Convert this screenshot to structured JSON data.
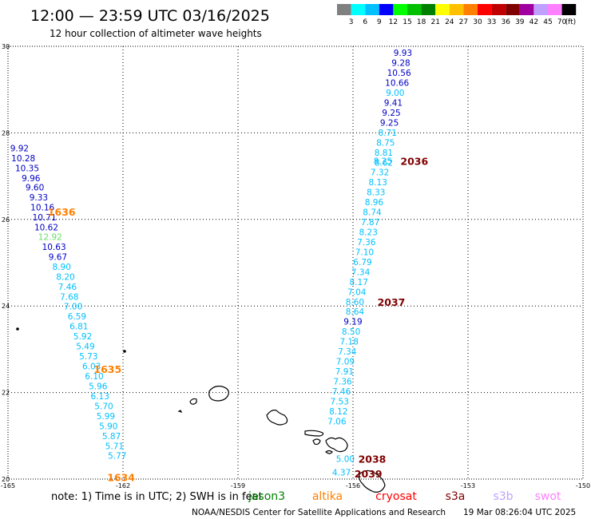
{
  "header": {
    "title": "12:00 — 23:59 UTC 03/16/2025",
    "subtitle": "12 hour collection of altimeter wave heights"
  },
  "legend": {
    "unit": "(ft)",
    "bins": [
      {
        "label": "3",
        "color": "#808080"
      },
      {
        "label": "6",
        "color": "#00ffff"
      },
      {
        "label": "9",
        "color": "#00c0ff"
      },
      {
        "label": "12",
        "color": "#0000ff"
      },
      {
        "label": "15",
        "color": "#00ff00"
      },
      {
        "label": "18",
        "color": "#00c000"
      },
      {
        "label": "21",
        "color": "#008000"
      },
      {
        "label": "24",
        "color": "#ffff00"
      },
      {
        "label": "27",
        "color": "#ffc000"
      },
      {
        "label": "30",
        "color": "#ff8000"
      },
      {
        "label": "33",
        "color": "#ff0000"
      },
      {
        "label": "36",
        "color": "#c00000"
      },
      {
        "label": "39",
        "color": "#800000"
      },
      {
        "label": "42",
        "color": "#a000a0"
      },
      {
        "label": "45",
        "color": "#c0a0ff"
      },
      {
        "label": "70",
        "color": "#ff80ff"
      },
      {
        "label": "",
        "color": "#000000"
      }
    ]
  },
  "axes": {
    "lon_ticks": [
      "-165",
      "-162",
      "-159",
      "-156",
      "-153",
      "-150"
    ],
    "lat_ticks": [
      "30",
      "28",
      "26",
      "24",
      "22",
      "20"
    ]
  },
  "tracks": [
    {
      "time": "1636",
      "time_color": "#ff8000",
      "time_label_lat": 26.18,
      "time_label_lon": -163.6,
      "points": [
        {
          "lat": 27.65,
          "lon": -164.7,
          "value": "9.92",
          "color": "#0000c8"
        },
        {
          "lat": 27.42,
          "lon": -164.6,
          "value": "10.28",
          "color": "#0000c8"
        },
        {
          "lat": 27.19,
          "lon": -164.5,
          "value": "10.35",
          "color": "#0000c8"
        },
        {
          "lat": 26.96,
          "lon": -164.4,
          "value": "9.96",
          "color": "#0000c8"
        },
        {
          "lat": 26.74,
          "lon": -164.3,
          "value": "9.60",
          "color": "#0000c8"
        },
        {
          "lat": 26.51,
          "lon": -164.2,
          "value": "9.33",
          "color": "#0000c8"
        },
        {
          "lat": 26.28,
          "lon": -164.1,
          "value": "10.16",
          "color": "#0000c8"
        },
        {
          "lat": 26.05,
          "lon": -164.05,
          "value": "10.71",
          "color": "#0000c8"
        },
        {
          "lat": 25.82,
          "lon": -164.0,
          "value": "10.62",
          "color": "#0000c8"
        },
        {
          "lat": 25.6,
          "lon": -163.9,
          "value": "12.92",
          "color": "#66dd66"
        },
        {
          "lat": 25.37,
          "lon": -163.8,
          "value": "10.63",
          "color": "#0000c8"
        },
        {
          "lat": 25.14,
          "lon": -163.7,
          "value": "9.67",
          "color": "#0000c8"
        },
        {
          "lat": 24.91,
          "lon": -163.6,
          "value": "8.90",
          "color": "#00c0ff"
        },
        {
          "lat": 24.68,
          "lon": -163.5,
          "value": "8.20",
          "color": "#00c0ff"
        },
        {
          "lat": 24.45,
          "lon": -163.45,
          "value": "7.46",
          "color": "#00c0ff"
        },
        {
          "lat": 24.22,
          "lon": -163.4,
          "value": "7.68",
          "color": "#00c0ff"
        },
        {
          "lat": 23.99,
          "lon": -163.3,
          "value": "7.00",
          "color": "#00c0ff"
        },
        {
          "lat": 23.76,
          "lon": -163.2,
          "value": "6.59",
          "color": "#00c0ff"
        }
      ]
    },
    {
      "time": "1635",
      "time_color": "#ff8000",
      "time_label_lat": 22.55,
      "time_label_lon": -162.4,
      "points": [
        {
          "lat": 23.53,
          "lon": -163.15,
          "value": "6.81",
          "color": "#00c0ff"
        },
        {
          "lat": 23.3,
          "lon": -163.05,
          "value": "5.92",
          "color": "#00c0ff"
        },
        {
          "lat": 23.07,
          "lon": -162.98,
          "value": "5.49",
          "color": "#00c0ff"
        },
        {
          "lat": 22.84,
          "lon": -162.9,
          "value": "5.73",
          "color": "#00c0ff"
        },
        {
          "lat": 22.61,
          "lon": -162.82,
          "value": "6.03",
          "color": "#00c0ff"
        },
        {
          "lat": 22.38,
          "lon": -162.75,
          "value": "6.10",
          "color": "#00c0ff"
        },
        {
          "lat": 22.15,
          "lon": -162.65,
          "value": "5.96",
          "color": "#00c0ff"
        },
        {
          "lat": 21.92,
          "lon": -162.6,
          "value": "6.13",
          "color": "#00c0ff"
        },
        {
          "lat": 21.69,
          "lon": -162.5,
          "value": "5.70",
          "color": "#00c0ff"
        },
        {
          "lat": 21.46,
          "lon": -162.45,
          "value": "5.99",
          "color": "#00c0ff"
        }
      ]
    },
    {
      "time": "1634",
      "time_color": "#ff8000",
      "time_label_lat": 20.05,
      "time_label_lon": -162.05,
      "points": [
        {
          "lat": 21.23,
          "lon": -162.38,
          "value": "5.90",
          "color": "#00c0ff"
        },
        {
          "lat": 21.0,
          "lon": -162.3,
          "value": "5.87",
          "color": "#00c0ff"
        },
        {
          "lat": 20.77,
          "lon": -162.22,
          "value": "5.71",
          "color": "#00c0ff"
        },
        {
          "lat": 20.54,
          "lon": -162.15,
          "value": "5.77",
          "color": "#00c0ff"
        }
      ]
    },
    {
      "time": "2036",
      "time_color": "#800000",
      "time_label_lat": 27.35,
      "time_label_lon": -154.4,
      "points": [
        {
          "lat": 29.85,
          "lon": -154.7,
          "value": "9.93",
          "color": "#0000c8"
        },
        {
          "lat": 29.62,
          "lon": -154.75,
          "value": "9.28",
          "color": "#0000c8"
        },
        {
          "lat": 29.39,
          "lon": -154.8,
          "value": "10.56",
          "color": "#0000c8"
        },
        {
          "lat": 29.16,
          "lon": -154.85,
          "value": "10.66",
          "color": "#0000c8"
        },
        {
          "lat": 28.93,
          "lon": -154.9,
          "value": "9.00",
          "color": "#00c0ff"
        },
        {
          "lat": 28.7,
          "lon": -154.95,
          "value": "9.41",
          "color": "#0000c8"
        },
        {
          "lat": 28.47,
          "lon": -155.0,
          "value": "9.25",
          "color": "#0000c8"
        },
        {
          "lat": 28.24,
          "lon": -155.05,
          "value": "9.25",
          "color": "#0000c8"
        },
        {
          "lat": 28.01,
          "lon": -155.1,
          "value": "8.71",
          "color": "#00c0ff"
        },
        {
          "lat": 27.78,
          "lon": -155.15,
          "value": "8.75",
          "color": "#00c0ff"
        },
        {
          "lat": 27.55,
          "lon": -155.2,
          "value": "8.81",
          "color": "#00c0ff"
        },
        {
          "lat": 27.35,
          "lon": -155.22,
          "value": "8.25",
          "color": "#00c0ff"
        },
        {
          "lat": 27.32,
          "lon": -155.2,
          "value": "8.62",
          "color": "#00c0ff"
        },
        {
          "lat": 27.09,
          "lon": -155.3,
          "value": "7.32",
          "color": "#00c0ff"
        },
        {
          "lat": 26.86,
          "lon": -155.35,
          "value": "8.13",
          "color": "#00c0ff"
        },
        {
          "lat": 26.63,
          "lon": -155.4,
          "value": "8.33",
          "color": "#00c0ff"
        },
        {
          "lat": 26.4,
          "lon": -155.45,
          "value": "8.96",
          "color": "#00c0ff"
        },
        {
          "lat": 26.17,
          "lon": -155.5,
          "value": "8.74",
          "color": "#00c0ff"
        },
        {
          "lat": 25.94,
          "lon": -155.55,
          "value": "7.87",
          "color": "#00c0ff"
        },
        {
          "lat": 25.71,
          "lon": -155.6,
          "value": "8.23",
          "color": "#00c0ff"
        },
        {
          "lat": 25.48,
          "lon": -155.65,
          "value": "7.36",
          "color": "#00c0ff"
        },
        {
          "lat": 25.25,
          "lon": -155.7,
          "value": "7.10",
          "color": "#00c0ff"
        },
        {
          "lat": 25.02,
          "lon": -155.75,
          "value": "6.79",
          "color": "#00c0ff"
        },
        {
          "lat": 24.79,
          "lon": -155.8,
          "value": "7.34",
          "color": "#00c0ff"
        },
        {
          "lat": 24.56,
          "lon": -155.85,
          "value": "8.17",
          "color": "#00c0ff"
        },
        {
          "lat": 24.33,
          "lon": -155.9,
          "value": "7.04",
          "color": "#00c0ff"
        },
        {
          "lat": 24.1,
          "lon": -155.95,
          "value": "8.60",
          "color": "#00c0ff"
        }
      ]
    },
    {
      "time": "2037",
      "time_color": "#800000",
      "time_label_lat": 24.1,
      "time_label_lon": -155.0,
      "points": [
        {
          "lat": 23.87,
          "lon": -155.95,
          "value": "8.64",
          "color": "#00c0ff"
        },
        {
          "lat": 23.64,
          "lon": -156.0,
          "value": "9.19",
          "color": "#0000c8"
        },
        {
          "lat": 23.41,
          "lon": -156.05,
          "value": "8.50",
          "color": "#00c0ff"
        },
        {
          "lat": 23.18,
          "lon": -156.1,
          "value": "7.18",
          "color": "#00c0ff"
        },
        {
          "lat": 22.95,
          "lon": -156.15,
          "value": "7.34",
          "color": "#00c0ff"
        },
        {
          "lat": 22.72,
          "lon": -156.2,
          "value": "7.09",
          "color": "#00c0ff"
        },
        {
          "lat": 22.49,
          "lon": -156.22,
          "value": "7.91",
          "color": "#00c0ff"
        },
        {
          "lat": 22.26,
          "lon": -156.27,
          "value": "7.36",
          "color": "#00c0ff"
        },
        {
          "lat": 22.03,
          "lon": -156.3,
          "value": "7.46",
          "color": "#00c0ff"
        },
        {
          "lat": 21.8,
          "lon": -156.35,
          "value": "7.53",
          "color": "#00c0ff"
        },
        {
          "lat": 21.57,
          "lon": -156.38,
          "value": "8.12",
          "color": "#00c0ff"
        },
        {
          "lat": 21.34,
          "lon": -156.42,
          "value": "7.06",
          "color": "#00c0ff"
        }
      ]
    },
    {
      "time": "2038",
      "time_color": "#800000",
      "time_label_lat": 20.47,
      "time_label_lon": -155.5,
      "points": [
        {
          "lat": 20.47,
          "lon": -156.2,
          "value": "5.00",
          "color": "#00c0ff"
        }
      ]
    },
    {
      "time": "2039",
      "time_color": "#800000",
      "time_label_lat": 20.13,
      "time_label_lon": -155.6,
      "points": [
        {
          "lat": 20.16,
          "lon": -156.3,
          "value": "4.37",
          "color": "#00c0ff"
        }
      ]
    }
  ],
  "footer": {
    "note_prefix": "note:  1) Time is in UTC; 2) SWH is in feet",
    "satellites": [
      {
        "name": "jason3",
        "color": "#008000"
      },
      {
        "name": "altika",
        "color": "#ff8000"
      },
      {
        "name": "cryosat",
        "color": "#ff0000"
      },
      {
        "name": "s3a",
        "color": "#800000"
      },
      {
        "name": "s3b",
        "color": "#c0a0ff"
      },
      {
        "name": "swot",
        "color": "#ff80ff"
      }
    ],
    "credit": "NOAA/NESDIS Center for Satellite Applications and Research",
    "timestamp": "19 Mar 08:26:04 UTC 2025"
  }
}
